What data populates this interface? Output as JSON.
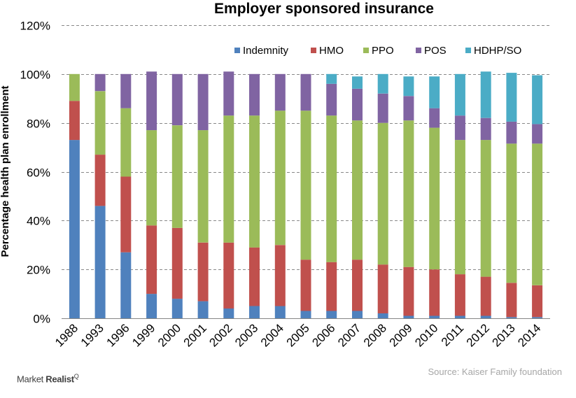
{
  "chart_data": {
    "type": "bar",
    "stacked": true,
    "title": "Employer sponsored  insurance",
    "ylabel": "Percentage health plan enrollment",
    "xlabel": "",
    "ylim": [
      0,
      120
    ],
    "yticks": [
      "0%",
      "20%",
      "40%",
      "60%",
      "80%",
      "100%",
      "120%"
    ],
    "grid": true,
    "legend_position": "top-right",
    "categories": [
      "1988",
      "1993",
      "1996",
      "1999",
      "2000",
      "2001",
      "2002",
      "2003",
      "2004",
      "2005",
      "2006",
      "2007",
      "2008",
      "2009",
      "2010",
      "2011",
      "2012",
      "2013",
      "2014"
    ],
    "series": [
      {
        "name": "Indemnity",
        "color": "#4f81bd",
        "values": [
          73,
          46,
          27,
          10,
          8,
          7,
          4,
          5,
          5,
          3,
          3,
          3,
          2,
          1,
          1,
          1,
          1,
          0.5,
          0.5
        ]
      },
      {
        "name": "HMO",
        "color": "#c0504d",
        "values": [
          16,
          21,
          31,
          28,
          29,
          24,
          27,
          24,
          25,
          21,
          20,
          21,
          20,
          20,
          19,
          17,
          16,
          14,
          13
        ]
      },
      {
        "name": "PPO",
        "color": "#9bbb59",
        "values": [
          11,
          26,
          28,
          39,
          42,
          46,
          52,
          54,
          55,
          61,
          60,
          57,
          58,
          60,
          58,
          55,
          56,
          57,
          58
        ]
      },
      {
        "name": "POS",
        "color": "#8064a2",
        "values": [
          0,
          7,
          14,
          24,
          21,
          23,
          18,
          17,
          15,
          15,
          13,
          13,
          12,
          10,
          8,
          10,
          9,
          9,
          8
        ]
      },
      {
        "name": "HDHP/SO",
        "color": "#4bacc6",
        "values": [
          0,
          0,
          0,
          0,
          0,
          0,
          0,
          0,
          0,
          0,
          4,
          5,
          8,
          8,
          13,
          17,
          19,
          20,
          20
        ]
      }
    ]
  },
  "footer": {
    "source": "Source: Kaiser Family foundation",
    "brand_main": "Market",
    "brand_bold": "Realist",
    "brand_mark": "Q"
  }
}
